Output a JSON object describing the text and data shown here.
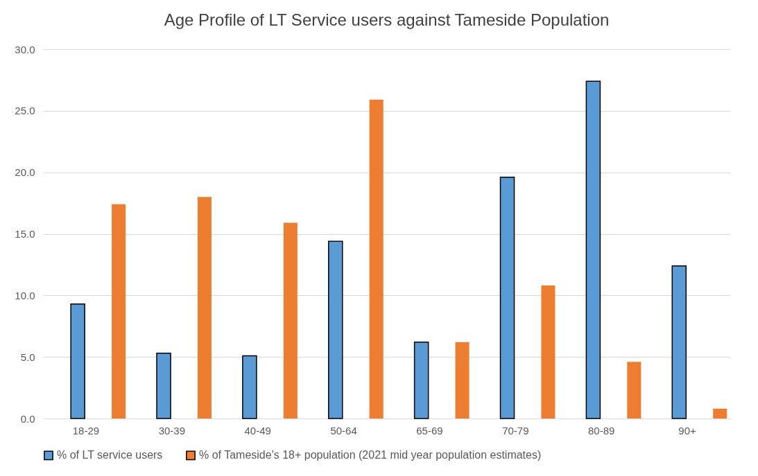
{
  "chart_data": {
    "type": "bar",
    "title": "Age Profile of LT Service users against Tameside Population",
    "categories": [
      "18-29",
      "30-39",
      "40-49",
      "50-64",
      "65-69",
      "70-79",
      "80-89",
      "90+"
    ],
    "series": [
      {
        "name": "% of LT service users",
        "color": "#5b9bd5",
        "values": [
          9.3,
          5.3,
          5.1,
          14.4,
          6.2,
          19.6,
          27.4,
          12.4
        ]
      },
      {
        "name": "% of Tameside's 18+ population (2021 mid year population estimates)",
        "color": "#ed7d31",
        "values": [
          17.4,
          18.0,
          15.9,
          25.9,
          6.2,
          10.8,
          4.6,
          0.8
        ]
      }
    ],
    "ylim": [
      0,
      30
    ],
    "yticks": [
      {
        "value": 0,
        "label": "0.0"
      },
      {
        "value": 5,
        "label": "5.0"
      },
      {
        "value": 10,
        "label": "10.0"
      },
      {
        "value": 15,
        "label": "15.0"
      },
      {
        "value": 20,
        "label": "20.0"
      },
      {
        "value": 25,
        "label": "25.0"
      },
      {
        "value": 30,
        "label": "30.0"
      }
    ],
    "grid": "y",
    "legend": "bottom"
  }
}
